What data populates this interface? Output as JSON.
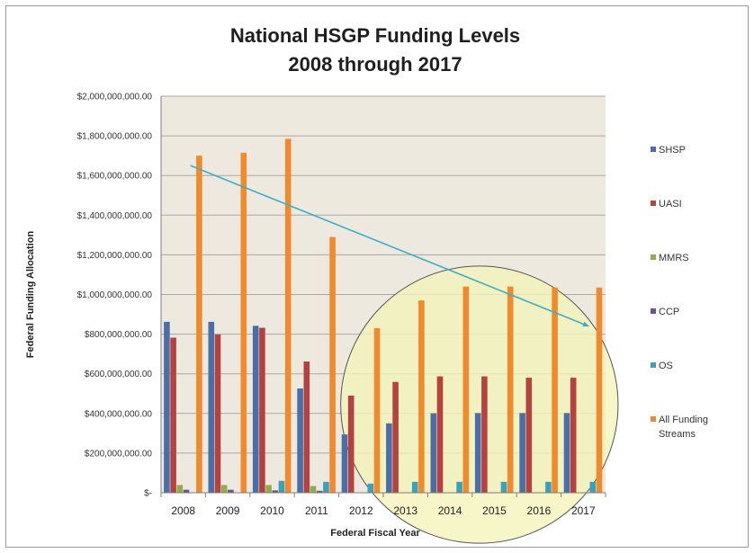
{
  "chart_data": {
    "type": "bar",
    "title_lines": [
      "National HSGP Funding Levels",
      "2008 through 2017"
    ],
    "xlabel": "Federal Fiscal Year",
    "ylabel": "Federal Funding Allocation",
    "categories": [
      "2008",
      "2009",
      "2010",
      "2011",
      "2012",
      "2013",
      "2014",
      "2015",
      "2016",
      "2017"
    ],
    "ylim": [
      0,
      2000000000
    ],
    "y_ticks": [
      0,
      200000000,
      400000000,
      600000000,
      800000000,
      1000000000,
      1200000000,
      1400000000,
      1600000000,
      1800000000,
      2000000000
    ],
    "y_tick_labels": [
      "$-",
      "$200,000,000.00",
      "$400,000,000.00",
      "$600,000,000.00",
      "$800,000,000.00",
      "$1,000,000,000.00",
      "$1,200,000,000.00",
      "$1,400,000,000.00",
      "$1,600,000,000.00",
      "$1,800,000,000.00",
      "$2,000,000,000.00"
    ],
    "grid": true,
    "legend_position": "right",
    "series": [
      {
        "name": "SHSP",
        "color": "#4a6fa8",
        "values": [
          862000000,
          862000000,
          842000000,
          526000000,
          294000000,
          350000000,
          401000000,
          402000000,
          402000000,
          402000000
        ]
      },
      {
        "name": "UASI",
        "color": "#b5423e",
        "values": [
          782000000,
          798000000,
          832000000,
          662000000,
          490000000,
          559000000,
          587000000,
          587000000,
          580000000,
          580000000
        ]
      },
      {
        "name": "MMRS",
        "color": "#8dae4a",
        "values": [
          39000000,
          39000000,
          39000000,
          34000000,
          0,
          0,
          0,
          0,
          0,
          0
        ]
      },
      {
        "name": "CCP",
        "color": "#6b5391",
        "values": [
          15000000,
          15000000,
          12000000,
          10000000,
          0,
          0,
          0,
          0,
          0,
          0
        ]
      },
      {
        "name": "OS",
        "color": "#3ea0b8",
        "values": [
          0,
          0,
          60000000,
          55000000,
          46000000,
          55000000,
          55000000,
          55000000,
          55000000,
          55000000
        ]
      },
      {
        "name": "All Funding Streams",
        "color": "#ef8b2c",
        "values": [
          1700000000,
          1715000000,
          1785000000,
          1290000000,
          830000000,
          970000000,
          1040000000,
          1040000000,
          1035000000,
          1035000000
        ]
      }
    ],
    "trendline": {
      "color": "#3ab0c6",
      "from": [
        "2008",
        1650000000
      ],
      "to": [
        "2017",
        840000000
      ]
    },
    "highlight": {
      "shape": "circle",
      "fill": "#f3f4b8",
      "stroke": "#555555",
      "covers_categories": [
        "2012",
        "2017"
      ]
    }
  }
}
